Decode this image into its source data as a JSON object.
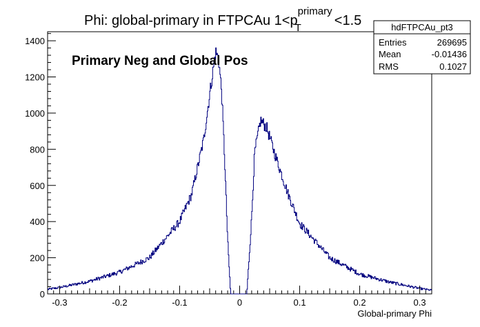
{
  "chart_data": {
    "type": "histogram",
    "title_main": "Phi: global-primary in FTPCAu 1<p",
    "title_sup": "primary",
    "title_sub": "T",
    "title_tail": "<1.5",
    "annotation": "Primary Neg and Global Pos",
    "xlabel": "Global-primary Phi",
    "ylabel": "",
    "xlim": [
      -0.32,
      0.32
    ],
    "ylim": [
      0,
      1450
    ],
    "xticks": [
      -0.3,
      -0.2,
      -0.1,
      0,
      0.1,
      0.2,
      0.3
    ],
    "xtick_labels": [
      "-0.3",
      "-0.2",
      "-0.1",
      "0",
      "0.1",
      "0.2",
      "0.3"
    ],
    "yticks": [
      0,
      200,
      400,
      600,
      800,
      1000,
      1200,
      1400
    ],
    "ytick_labels": [
      "0",
      "200",
      "400",
      "600",
      "800",
      "1000",
      "1200",
      "1400"
    ],
    "grid": false,
    "line_color": "#00007f",
    "shape_points": [
      {
        "x": -0.32,
        "y": 25
      },
      {
        "x": -0.3,
        "y": 35
      },
      {
        "x": -0.25,
        "y": 70
      },
      {
        "x": -0.2,
        "y": 120
      },
      {
        "x": -0.15,
        "y": 200
      },
      {
        "x": -0.1,
        "y": 400
      },
      {
        "x": -0.08,
        "y": 550
      },
      {
        "x": -0.06,
        "y": 850
      },
      {
        "x": -0.05,
        "y": 1100
      },
      {
        "x": -0.04,
        "y": 1340
      },
      {
        "x": -0.035,
        "y": 1300
      },
      {
        "x": -0.03,
        "y": 1120
      },
      {
        "x": -0.025,
        "y": 750
      },
      {
        "x": -0.02,
        "y": 300
      },
      {
        "x": -0.015,
        "y": 0
      },
      {
        "x": 0.012,
        "y": 0
      },
      {
        "x": 0.02,
        "y": 420
      },
      {
        "x": 0.025,
        "y": 780
      },
      {
        "x": 0.035,
        "y": 960
      },
      {
        "x": 0.045,
        "y": 920
      },
      {
        "x": 0.06,
        "y": 760
      },
      {
        "x": 0.08,
        "y": 560
      },
      {
        "x": 0.1,
        "y": 390
      },
      {
        "x": 0.15,
        "y": 200
      },
      {
        "x": 0.2,
        "y": 110
      },
      {
        "x": 0.25,
        "y": 65
      },
      {
        "x": 0.3,
        "y": 30
      },
      {
        "x": 0.32,
        "y": 20
      }
    ],
    "stats": {
      "name": "hdFTPCAu_pt3",
      "rows": [
        {
          "label": "Entries",
          "value": "269695"
        },
        {
          "label": "Mean",
          "value": "-0.01436"
        },
        {
          "label": "RMS",
          "value": "0.1027"
        }
      ]
    }
  }
}
